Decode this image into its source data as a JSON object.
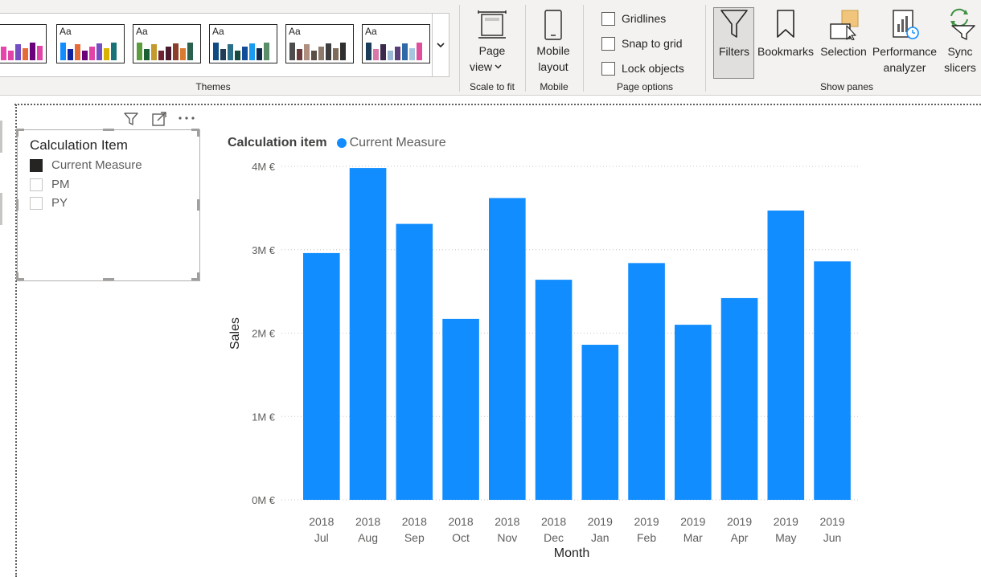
{
  "ribbon": {
    "groups": {
      "themes": "Themes",
      "scale_to_fit": "Scale to fit",
      "mobile": "Mobile",
      "page_options": "Page options",
      "show_panes": "Show panes"
    },
    "theme_label": "Aa",
    "page_view": {
      "line1": "Page",
      "line2": "view"
    },
    "mobile_layout": {
      "line1": "Mobile",
      "line2": "layout"
    },
    "checkboxes": {
      "gridlines": "Gridlines",
      "snap_to_grid": "Snap to grid",
      "lock_objects": "Lock objects"
    },
    "panes": {
      "filters": "Filters",
      "bookmarks": "Bookmarks",
      "selection": "Selection",
      "performance": {
        "line1": "Performance",
        "line2": "analyzer"
      },
      "sync": {
        "line1": "Sync",
        "line2": "slicers"
      }
    },
    "icons": [
      "filter-icon",
      "bookmark-icon",
      "selection-icon",
      "performance-icon",
      "sync-slicers-icon",
      "page-view-icon",
      "mobile-icon",
      "chevron-down-icon"
    ]
  },
  "slicer": {
    "title": "Calculation Item",
    "items": [
      {
        "label": "Current Measure",
        "checked": true
      },
      {
        "label": "PM",
        "checked": false
      },
      {
        "label": "PY",
        "checked": false
      }
    ],
    "header_icons": [
      "filter-icon",
      "focus-mode-icon",
      "more-options-icon"
    ]
  },
  "chart_data": {
    "type": "bar",
    "legend_title": "Calculation item",
    "legend_position": "top-left",
    "series": [
      {
        "name": "Current Measure",
        "color": "#118dff",
        "values": [
          2.96,
          3.98,
          3.31,
          2.17,
          3.62,
          2.64,
          1.86,
          2.84,
          2.1,
          2.42,
          3.47,
          2.86
        ]
      }
    ],
    "categories": [
      {
        "year": "2018",
        "month": "Jul"
      },
      {
        "year": "2018",
        "month": "Aug"
      },
      {
        "year": "2018",
        "month": "Sep"
      },
      {
        "year": "2018",
        "month": "Oct"
      },
      {
        "year": "2018",
        "month": "Nov"
      },
      {
        "year": "2018",
        "month": "Dec"
      },
      {
        "year": "2019",
        "month": "Jan"
      },
      {
        "year": "2019",
        "month": "Feb"
      },
      {
        "year": "2019",
        "month": "Mar"
      },
      {
        "year": "2019",
        "month": "Apr"
      },
      {
        "year": "2019",
        "month": "May"
      },
      {
        "year": "2019",
        "month": "Jun"
      }
    ],
    "xlabel": "Month",
    "ylabel": "Sales",
    "ylim": [
      0,
      4
    ],
    "yticks": [
      {
        "value": 0,
        "label": "0M €"
      },
      {
        "value": 1,
        "label": "1M €"
      },
      {
        "value": 2,
        "label": "2M €"
      },
      {
        "value": 3,
        "label": "3M €"
      },
      {
        "value": 4,
        "label": "4M €"
      }
    ],
    "gridlines": true
  }
}
